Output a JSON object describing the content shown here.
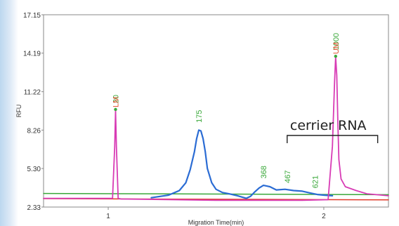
{
  "chart_data": {
    "type": "line",
    "title": "",
    "xlabel": "Migration Time(min)",
    "ylabel": "RFU",
    "xlim": [
      0.7,
      2.3
    ],
    "ylim": [
      2.33,
      17.15
    ],
    "xticks": [
      1,
      2
    ],
    "xtick_labels": [
      "1",
      "2"
    ],
    "yticks": [
      2.33,
      5.3,
      8.26,
      11.22,
      14.19,
      17.15
    ],
    "ytick_labels": [
      "2.33",
      "5.30",
      "8.26",
      "11.22",
      "14.19",
      "17.15"
    ],
    "grid": false,
    "legend": "none",
    "series": [
      {
        "color": "#2b6cd4",
        "x": [
          1.2,
          1.28,
          1.33,
          1.36,
          1.38,
          1.4,
          1.41,
          1.42,
          1.43,
          1.44,
          1.45,
          1.46,
          1.48,
          1.5,
          1.53,
          1.56,
          1.6,
          1.64,
          1.66,
          1.68,
          1.7,
          1.72,
          1.75,
          1.78,
          1.82,
          1.86,
          1.9,
          1.94,
          1.97,
          2.0,
          2.04
        ],
        "y": [
          3.05,
          3.25,
          3.6,
          4.2,
          5.2,
          6.6,
          7.6,
          8.26,
          8.2,
          7.6,
          6.6,
          5.3,
          4.2,
          3.7,
          3.45,
          3.35,
          3.2,
          3.0,
          3.15,
          3.5,
          3.8,
          4.0,
          3.9,
          3.65,
          3.7,
          3.6,
          3.55,
          3.4,
          3.3,
          3.25,
          3.2
        ]
      },
      {
        "color": "#d83bb5",
        "x": [
          0.7,
          1.02,
          1.03,
          1.034,
          1.038,
          1.046,
          1.06,
          1.5,
          1.9,
          2.02,
          2.04,
          2.05,
          2.055,
          2.06,
          2.065,
          2.07,
          2.08,
          2.1,
          2.15,
          2.2,
          2.3
        ],
        "y": [
          3.0,
          3.0,
          7.0,
          9.8,
          7.0,
          3.0,
          2.95,
          2.85,
          2.85,
          2.9,
          7.0,
          12.0,
          13.9,
          12.5,
          9.0,
          6.0,
          4.5,
          3.9,
          3.6,
          3.35,
          3.2
        ]
      },
      {
        "color": "#3aa83a",
        "x": [
          0.7,
          2.3
        ],
        "y": [
          3.38,
          3.28
        ]
      },
      {
        "color": "#e03a2a",
        "x": [
          0.7,
          2.3
        ],
        "y": [
          2.98,
          2.88
        ]
      }
    ],
    "peak_labels": [
      {
        "text": "20",
        "x": 1.034,
        "y": 10.0,
        "color": "#3aa83a"
      },
      {
        "text": "175",
        "x": 1.42,
        "y": 8.5,
        "color": "#3aa83a"
      },
      {
        "text": "368",
        "x": 1.72,
        "y": 4.2,
        "color": "#3aa83a"
      },
      {
        "text": "467",
        "x": 1.83,
        "y": 3.85,
        "color": "#3aa83a"
      },
      {
        "text": "621",
        "x": 1.96,
        "y": 3.45,
        "color": "#3aa83a"
      },
      {
        "text": "1000",
        "x": 2.055,
        "y": 14.1,
        "color": "#3aa83a"
      }
    ],
    "markers": [
      {
        "text": "LM",
        "x": 1.034,
        "y": 9.85,
        "color": "#e05030"
      },
      {
        "text": "UM",
        "x": 2.055,
        "y": 13.95,
        "color": "#e05030"
      }
    ],
    "annotation": {
      "text": "cerrier RNA",
      "bracket_x": [
        1.83,
        2.25
      ]
    }
  }
}
